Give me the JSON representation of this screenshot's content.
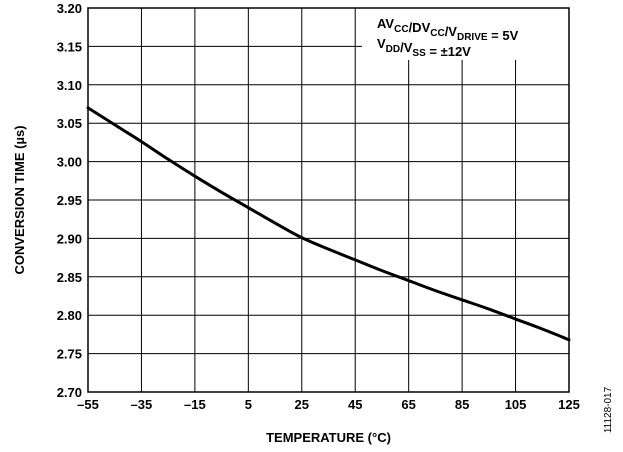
{
  "chart_data": {
    "type": "line",
    "xlabel": "TEMPERATURE (°C)",
    "ylabel": "CONVERSION TIME (µs)",
    "xlim": [
      -55,
      125
    ],
    "ylim": [
      2.7,
      3.2
    ],
    "x_ticks": [
      -55,
      -35,
      -15,
      5,
      25,
      45,
      65,
      85,
      105,
      125
    ],
    "x_tick_labels": [
      "–55",
      "–35",
      "–15",
      "5",
      "25",
      "45",
      "65",
      "85",
      "105",
      "125"
    ],
    "y_ticks": [
      2.7,
      2.75,
      2.8,
      2.85,
      2.9,
      2.95,
      3.0,
      3.05,
      3.1,
      3.15,
      3.2
    ],
    "y_tick_labels": [
      "2.70",
      "2.75",
      "2.80",
      "2.85",
      "2.90",
      "2.95",
      "3.00",
      "3.05",
      "3.10",
      "3.15",
      "3.20"
    ],
    "grid": true,
    "legend": "none",
    "series": [
      {
        "x": [
          -55,
          -45,
          -35,
          -25,
          -15,
          -5,
          5,
          15,
          25,
          35,
          45,
          55,
          65,
          75,
          85,
          95,
          105,
          115,
          125
        ],
        "y": [
          3.07,
          3.048,
          3.026,
          3.003,
          2.981,
          2.96,
          2.94,
          2.92,
          2.901,
          2.886,
          2.872,
          2.858,
          2.845,
          2.832,
          2.82,
          2.808,
          2.795,
          2.782,
          2.768
        ],
        "color": "#000000"
      }
    ],
    "annotations": [
      {
        "runs": [
          {
            "t": "AV",
            "sub": false
          },
          {
            "t": "CC",
            "sub": true
          },
          {
            "t": "/DV",
            "sub": false
          },
          {
            "t": "CC",
            "sub": true
          },
          {
            "t": "/V",
            "sub": false
          },
          {
            "t": "DRIVE",
            "sub": true
          },
          {
            "t": " = 5V",
            "sub": false
          }
        ]
      },
      {
        "runs": [
          {
            "t": "V",
            "sub": false
          },
          {
            "t": "DD",
            "sub": true
          },
          {
            "t": "/V",
            "sub": false
          },
          {
            "t": "SS",
            "sub": true
          },
          {
            "t": " = ±12V",
            "sub": false
          }
        ]
      }
    ],
    "figure_id": "11128-017"
  }
}
